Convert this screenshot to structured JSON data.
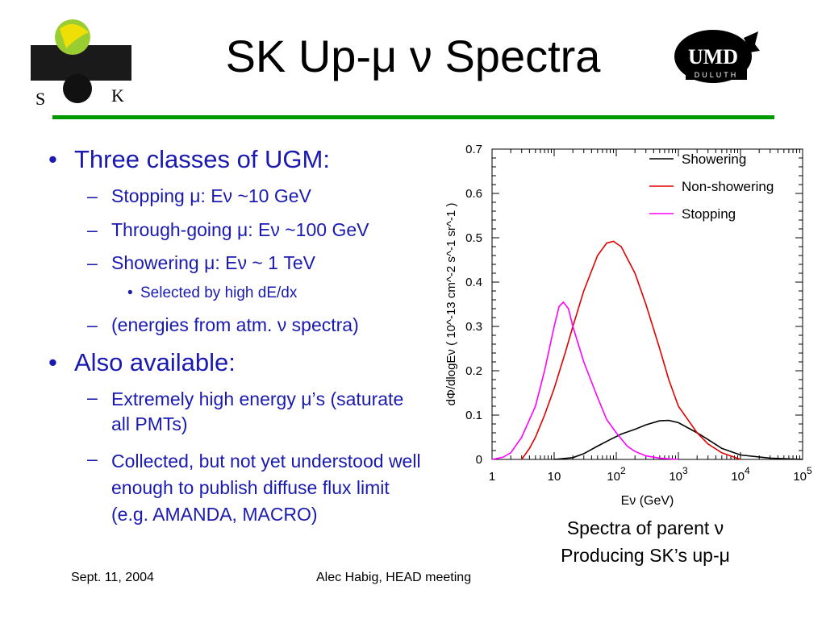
{
  "slide": {
    "title": "SK Up-μ ν Spectra",
    "logo_left": {
      "letter_s": "S",
      "letter_k": "K"
    },
    "logo_right": {
      "text": "UMD",
      "subtext": "DULUTH"
    },
    "accent_rule_color": "#009900",
    "text_color": "#1a1ab0"
  },
  "bullets": {
    "b1": "Three classes of UGM:",
    "b1_1": "Stopping μ: Eν ~10 GeV",
    "b1_2": "Through-going μ: Eν ~100 GeV",
    "b1_3": "Showering μ: Eν ~ 1 TeV",
    "b1_3_1": "Selected by high dE/dx",
    "b1_4": "(energies from atm. ν spectra)",
    "b2": "Also available:",
    "b2_1": "Extremely high energy μ’s (saturate all PMTs)",
    "b2_2": "Collected, but not yet understood well enough to publish diffuse flux limit (e.g. AMANDA, MACRO)"
  },
  "caption": {
    "line1": "Spectra of parent ν",
    "line2": "Producing SK’s up-μ"
  },
  "footer": {
    "date": "Sept. 11, 2004",
    "center": "Alec Habig, HEAD meeting"
  },
  "chart_data": {
    "type": "line",
    "xlabel": "Eν (GeV)",
    "ylabel": "dΦ/dlogEν ( 10^-13 cm^-2 s^-1 sr^-1 )",
    "xscale": "log",
    "xlim": [
      1,
      100000
    ],
    "ylim": [
      0,
      0.7
    ],
    "xticks": [
      "1",
      "10",
      "10^2",
      "10^3",
      "10^4",
      "10^5"
    ],
    "yticks": [
      "0",
      "0.1",
      "0.2",
      "0.3",
      "0.4",
      "0.5",
      "0.6",
      "0.7"
    ],
    "legend": "top-right",
    "series": [
      {
        "name": "Showering",
        "color": "#000000",
        "x": [
          10,
          20,
          30,
          50,
          80,
          120,
          200,
          300,
          500,
          700,
          1000,
          2000,
          3000,
          5000,
          10000,
          30000,
          100000
        ],
        "y": [
          0,
          0.004,
          0.013,
          0.03,
          0.045,
          0.057,
          0.068,
          0.078,
          0.087,
          0.088,
          0.083,
          0.06,
          0.045,
          0.025,
          0.01,
          0.003,
          0
        ]
      },
      {
        "name": "Non-showering",
        "color": "#e00000",
        "x": [
          3,
          4,
          5,
          7,
          10,
          15,
          20,
          30,
          50,
          70,
          90,
          120,
          200,
          300,
          500,
          700,
          1000,
          2000,
          3000,
          5000,
          10000
        ],
        "y": [
          0,
          0.025,
          0.05,
          0.1,
          0.16,
          0.24,
          0.3,
          0.38,
          0.46,
          0.488,
          0.492,
          0.48,
          0.42,
          0.35,
          0.25,
          0.18,
          0.12,
          0.06,
          0.035,
          0.015,
          0
        ]
      },
      {
        "name": "Stopping",
        "color": "#ff00ff",
        "x": [
          1,
          1.5,
          2,
          3,
          5,
          7,
          10,
          12,
          14,
          17,
          20,
          30,
          50,
          70,
          100,
          150,
          200,
          300,
          500,
          1000
        ],
        "y": [
          0,
          0.005,
          0.015,
          0.05,
          0.12,
          0.2,
          0.3,
          0.345,
          0.355,
          0.34,
          0.3,
          0.22,
          0.14,
          0.09,
          0.06,
          0.03,
          0.018,
          0.008,
          0.003,
          0
        ]
      }
    ]
  }
}
